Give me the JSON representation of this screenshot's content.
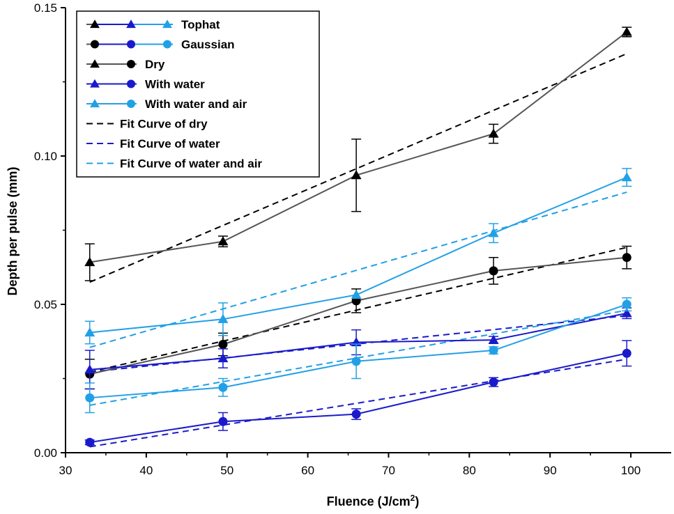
{
  "chart_data": {
    "type": "line",
    "title": "",
    "xlabel": "Fluence (J/cm",
    "xlabel_sup": "2",
    "xlabel_end": ")",
    "ylabel": "Depth per pulse (mm)",
    "xlim": [
      30,
      105
    ],
    "ylim": [
      0,
      0.15
    ],
    "x_ticks": [
      30,
      40,
      50,
      60,
      70,
      80,
      90,
      100
    ],
    "y_ticks": [
      0,
      0.05,
      0.1,
      0.15
    ],
    "y_tick_labels": [
      "0.00",
      "0.05",
      "0.10",
      "0.15"
    ],
    "grid": false,
    "legend_position": "top-left",
    "colors": {
      "dry": "#000000",
      "water": "#1a1acc",
      "air": "#22a0e6",
      "dry_line": "#555555"
    },
    "series": [
      {
        "name": "Tophat - Dry",
        "color": "dry",
        "marker": "triangle",
        "x": [
          33,
          49.5,
          66,
          83,
          99.5
        ],
        "y": [
          0.0642,
          0.0712,
          0.0935,
          0.1075,
          0.1418
        ],
        "err": [
          0.0062,
          0.0018,
          0.0122,
          0.0032,
          0.0016
        ]
      },
      {
        "name": "Gaussian - Dry",
        "color": "dry",
        "marker": "circle",
        "x": [
          33,
          49.5,
          66,
          83,
          99.5
        ],
        "y": [
          0.0265,
          0.0365,
          0.0512,
          0.0613,
          0.0658
        ],
        "err": [
          0.005,
          0.0038,
          0.004,
          0.0045,
          0.0038
        ]
      },
      {
        "name": "Tophat - With water",
        "color": "water",
        "marker": "triangle",
        "x": [
          33,
          49.5,
          66,
          83,
          99.5
        ],
        "y": [
          0.028,
          0.0318,
          0.0372,
          0.038,
          0.047
        ],
        "err": [
          0.0065,
          0.0032,
          0.0042,
          0.0012,
          0.0018
        ]
      },
      {
        "name": "Gaussian - With water",
        "color": "water",
        "marker": "circle",
        "x": [
          33,
          49.5,
          66,
          83,
          99.5
        ],
        "y": [
          0.0035,
          0.0105,
          0.013,
          0.0238,
          0.0335
        ],
        "err": [
          0.0008,
          0.003,
          0.0018,
          0.0015,
          0.0043
        ]
      },
      {
        "name": "Tophat - With water and air",
        "color": "air",
        "marker": "triangle",
        "x": [
          33,
          49.5,
          66,
          83,
          99.5
        ],
        "y": [
          0.0405,
          0.045,
          0.0532,
          0.074,
          0.0928
        ],
        "err": [
          0.0038,
          0.0055,
          0.0,
          0.0032,
          0.003
        ]
      },
      {
        "name": "Gaussian - With water and air",
        "color": "air",
        "marker": "circle",
        "x": [
          33,
          49.5,
          66,
          83,
          99.5
        ],
        "y": [
          0.0185,
          0.022,
          0.0308,
          0.0345,
          0.05
        ],
        "err": [
          0.005,
          0.003,
          0.0058,
          0.0012,
          0.0022
        ]
      }
    ],
    "fits": [
      {
        "name": "Fit Curve of dry (Tophat)",
        "color": "dry",
        "x": [
          33,
          99.5
        ],
        "y": [
          0.0575,
          0.1345
        ]
      },
      {
        "name": "Fit Curve of dry (Gaussian)",
        "color": "dry",
        "x": [
          33,
          99.5
        ],
        "y": [
          0.0272,
          0.0692
        ]
      },
      {
        "name": "Fit Curve of water (Tophat)",
        "color": "water",
        "x": [
          33,
          99.5
        ],
        "y": [
          0.0272,
          0.0462
        ]
      },
      {
        "name": "Fit Curve of water (Gaussian)",
        "color": "water",
        "x": [
          33,
          99.5
        ],
        "y": [
          0.002,
          0.0315
        ]
      },
      {
        "name": "Fit Curve of water and air (Tophat)",
        "color": "air",
        "x": [
          33,
          99.5
        ],
        "y": [
          0.0355,
          0.0878
        ]
      },
      {
        "name": "Fit Curve of water and air (Gaussian)",
        "color": "air",
        "x": [
          33,
          99.5
        ],
        "y": [
          0.016,
          0.048
        ]
      }
    ],
    "legend": [
      {
        "label": "Tophat",
        "type": "markers",
        "markers": [
          [
            "dry",
            "triangle"
          ],
          [
            "water",
            "triangle"
          ],
          [
            "air",
            "triangle"
          ]
        ]
      },
      {
        "label": "Gaussian",
        "type": "markers",
        "markers": [
          [
            "dry",
            "circle"
          ],
          [
            "water",
            "circle"
          ],
          [
            "air",
            "circle"
          ]
        ]
      },
      {
        "label": "Dry",
        "type": "markers",
        "markers": [
          [
            "dry",
            "triangle"
          ],
          [
            "dry",
            "circle"
          ]
        ]
      },
      {
        "label": "With water",
        "type": "markers",
        "markers": [
          [
            "water",
            "triangle"
          ],
          [
            "water",
            "circle"
          ]
        ]
      },
      {
        "label": "With water and air",
        "type": "markers",
        "markers": [
          [
            "air",
            "triangle"
          ],
          [
            "air",
            "circle"
          ]
        ]
      },
      {
        "label": "Fit Curve of dry",
        "type": "dash",
        "color": "dry"
      },
      {
        "label": "Fit Curve of water",
        "type": "dash",
        "color": "water"
      },
      {
        "label": "Fit Curve of water and air",
        "type": "dash",
        "color": "air"
      }
    ]
  }
}
